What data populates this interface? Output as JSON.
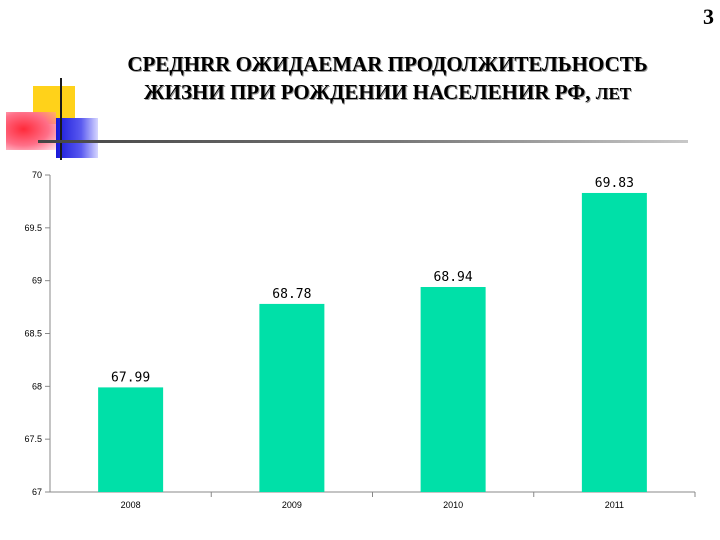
{
  "page_number": "3",
  "title": {
    "line1": "СРЕДНRR ОЖИДАЕМАR ПРОДОЛЖИТЕЛЬНОСТЬ",
    "line2": "ЖИЗНИ ПРИ РОЖДЕНИИ НАСЕЛЕНИR РФ,",
    "unit": "ЛЕТ"
  },
  "chart_data": {
    "type": "bar",
    "title": "",
    "xlabel": "",
    "ylabel": "",
    "categories": [
      "2008",
      "2009",
      "2010",
      "2011"
    ],
    "values": [
      67.99,
      68.78,
      68.94,
      69.83
    ],
    "data_labels": [
      "67.99",
      "68.78",
      "68.94",
      "69.83"
    ],
    "y_ticks": [
      "67",
      "67.5",
      "68",
      "68.5",
      "69",
      "69.5",
      "70"
    ],
    "ylim": [
      67,
      70
    ],
    "grid": false,
    "legend": "none",
    "bar_color": "#00e0a8"
  }
}
